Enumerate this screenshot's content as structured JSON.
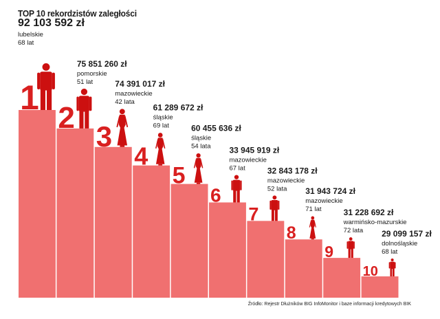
{
  "title": "TOP 10 rekordzistów zaległości",
  "source": "Źródło: Rejestr Dłużników BIG InfoMonitor i baze informacji kredytowych BIK",
  "colors": {
    "bar": "#f07070",
    "rank": "#d92020",
    "figure": "#cc1010",
    "text": "#1a1a1a"
  },
  "chart_data": {
    "type": "bar",
    "title": "TOP 10 rekordzistów zaległości",
    "categories": [
      "1",
      "2",
      "3",
      "4",
      "5",
      "6",
      "7",
      "8",
      "9",
      "10"
    ],
    "values": [
      92103592,
      75851260,
      74391017,
      61289672,
      60455636,
      33945919,
      32843178,
      31943724,
      31228692,
      29099157
    ],
    "unit": "zł",
    "labels": [
      {
        "rank": "1",
        "amount": "92 103 592 zł",
        "region": "lubelskie",
        "age": "68 lat",
        "gender": "male"
      },
      {
        "rank": "2",
        "amount": "75 851 260 zł",
        "region": "pomorskie",
        "age": "51 lat",
        "gender": "male"
      },
      {
        "rank": "3",
        "amount": "74 391 017 zł",
        "region": "mazowieckie",
        "age": "42 lata",
        "gender": "female"
      },
      {
        "rank": "4",
        "amount": "61 289 672 zł",
        "region": "śląskie",
        "age": "69 lat",
        "gender": "female"
      },
      {
        "rank": "5",
        "amount": "60 455 636 zł",
        "region": "śląskie",
        "age": "54 lata",
        "gender": "female"
      },
      {
        "rank": "6",
        "amount": "33 945 919 zł",
        "region": "mazowieckie",
        "age": "67 lat",
        "gender": "male"
      },
      {
        "rank": "7",
        "amount": "32 843 178 zł",
        "region": "mazowieckie",
        "age": "52 lata",
        "gender": "male"
      },
      {
        "rank": "8",
        "amount": "31 943 724 zł",
        "region": "mazowieckie",
        "age": "71 lat",
        "gender": "female"
      },
      {
        "rank": "9",
        "amount": "31 228 692 zł",
        "region": "warmińsko-mazurskie",
        "age": "72 lata",
        "gender": "male"
      },
      {
        "rank": "10",
        "amount": "29 099 157 zł",
        "region": "dolnośląskie",
        "age": "68 lat",
        "gender": "male"
      }
    ]
  }
}
